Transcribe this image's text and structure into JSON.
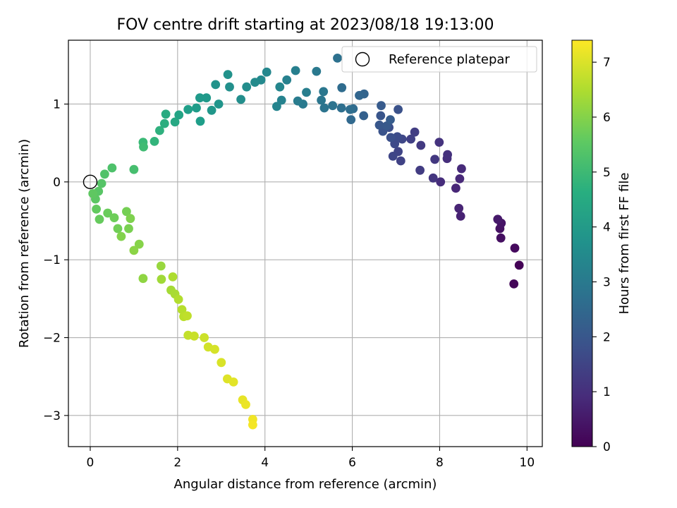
{
  "chart_data": {
    "type": "scatter",
    "title": "FOV centre drift starting at 2023/08/18 19:13:00",
    "xlabel": "Angular distance from reference (arcmin)",
    "ylabel": "Rotation from reference (arcmin)",
    "xlim": [
      -0.5,
      10.35
    ],
    "ylim": [
      -3.4,
      1.82
    ],
    "xticks": [
      0,
      2,
      4,
      6,
      8,
      10
    ],
    "xtick_labels": [
      "0",
      "2",
      "4",
      "6",
      "8",
      "10"
    ],
    "yticks": [
      -3,
      -2,
      -1,
      0,
      1
    ],
    "ytick_labels": [
      "−3",
      "−2",
      "−1",
      "0",
      "1"
    ],
    "grid": true,
    "legend": {
      "position": "top-right",
      "entries": [
        "Reference platepar"
      ]
    },
    "reference_point": {
      "name": "Reference platepar",
      "x": 0,
      "y": 0
    },
    "colorbar": {
      "label": "Hours from first FF file",
      "range": [
        0,
        7.4
      ],
      "ticks": [
        0,
        1,
        2,
        3,
        4,
        5,
        6,
        7
      ],
      "tick_labels": [
        "0",
        "1",
        "2",
        "3",
        "4",
        "5",
        "6",
        "7"
      ],
      "colormap": "viridis"
    },
    "points": [
      [
        9.82,
        -1.07,
        0.05
      ],
      [
        9.7,
        -1.31,
        0.1
      ],
      [
        9.72,
        -0.85,
        0.2
      ],
      [
        9.4,
        -0.72,
        0.3
      ],
      [
        9.38,
        -0.6,
        0.35
      ],
      [
        9.41,
        -0.53,
        0.4
      ],
      [
        9.33,
        -0.48,
        0.5
      ],
      [
        8.48,
        -0.44,
        0.7
      ],
      [
        8.44,
        -0.34,
        0.75
      ],
      [
        8.37,
        -0.08,
        0.8
      ],
      [
        8.46,
        0.04,
        0.85
      ],
      [
        8.5,
        0.17,
        0.9
      ],
      [
        8.02,
        0.0,
        0.95
      ],
      [
        8.17,
        0.3,
        1.0
      ],
      [
        8.18,
        0.35,
        1.05
      ],
      [
        7.99,
        0.51,
        1.1
      ],
      [
        7.85,
        0.05,
        1.15
      ],
      [
        7.89,
        0.29,
        1.2
      ],
      [
        7.57,
        0.47,
        1.25
      ],
      [
        7.55,
        0.15,
        1.3
      ],
      [
        7.43,
        0.64,
        1.35
      ],
      [
        7.34,
        0.55,
        1.4
      ],
      [
        7.11,
        0.27,
        1.45
      ],
      [
        7.05,
        0.39,
        1.5
      ],
      [
        6.93,
        0.33,
        1.55
      ],
      [
        7.14,
        0.55,
        1.6
      ],
      [
        6.97,
        0.49,
        1.65
      ],
      [
        7.03,
        0.58,
        1.7
      ],
      [
        6.84,
        0.7,
        1.75
      ],
      [
        6.88,
        0.57,
        1.8
      ],
      [
        7.05,
        0.93,
        1.85
      ],
      [
        6.7,
        0.65,
        1.9
      ],
      [
        6.65,
        0.85,
        1.95
      ],
      [
        6.62,
        0.73,
        2.0
      ],
      [
        6.79,
        0.72,
        2.05
      ],
      [
        6.66,
        0.98,
        2.1
      ],
      [
        6.87,
        0.8,
        2.15
      ],
      [
        6.26,
        0.85,
        2.25
      ],
      [
        6.27,
        1.13,
        2.35
      ],
      [
        6.16,
        1.11,
        2.4
      ],
      [
        5.97,
        0.8,
        2.5
      ],
      [
        6.02,
        0.94,
        2.55
      ],
      [
        5.76,
        1.21,
        2.6
      ],
      [
        5.95,
        0.93,
        2.65
      ],
      [
        5.75,
        0.95,
        2.7
      ],
      [
        5.66,
        1.59,
        2.75
      ],
      [
        5.55,
        0.98,
        2.8
      ],
      [
        5.36,
        0.95,
        2.85
      ],
      [
        5.29,
        1.05,
        2.9
      ],
      [
        5.34,
        1.16,
        2.95
      ],
      [
        5.18,
        1.42,
        3.0
      ],
      [
        4.87,
        1.0,
        3.05
      ],
      [
        4.75,
        1.04,
        3.1
      ],
      [
        4.95,
        1.15,
        3.15
      ],
      [
        4.7,
        1.43,
        3.2
      ],
      [
        4.5,
        1.31,
        3.25
      ],
      [
        4.38,
        1.05,
        3.3
      ],
      [
        4.27,
        0.97,
        3.35
      ],
      [
        4.34,
        1.22,
        3.4
      ],
      [
        4.04,
        1.41,
        3.45
      ],
      [
        3.91,
        1.31,
        3.5
      ],
      [
        3.77,
        1.28,
        3.55
      ],
      [
        3.58,
        1.22,
        3.6
      ],
      [
        3.45,
        1.06,
        3.65
      ],
      [
        3.19,
        1.22,
        3.7
      ],
      [
        3.15,
        1.38,
        3.75
      ],
      [
        2.87,
        1.25,
        3.8
      ],
      [
        2.94,
        1.0,
        3.85
      ],
      [
        2.78,
        0.92,
        3.9
      ],
      [
        2.66,
        1.08,
        3.95
      ],
      [
        2.51,
        1.08,
        4.0
      ],
      [
        2.43,
        0.95,
        4.05
      ],
      [
        2.52,
        0.78,
        4.1
      ],
      [
        2.24,
        0.93,
        4.15
      ],
      [
        2.03,
        0.86,
        4.3
      ],
      [
        1.94,
        0.77,
        4.4
      ],
      [
        1.73,
        0.87,
        4.5
      ],
      [
        1.7,
        0.75,
        4.6
      ],
      [
        1.59,
        0.66,
        4.7
      ],
      [
        1.47,
        0.52,
        4.85
      ],
      [
        1.21,
        0.51,
        5.0
      ],
      [
        1.22,
        0.45,
        5.1
      ],
      [
        1.0,
        0.16,
        5.2
      ],
      [
        0.5,
        0.18,
        5.3
      ],
      [
        0.33,
        0.1,
        5.35
      ],
      [
        0.26,
        -0.02,
        5.4
      ],
      [
        0.19,
        -0.12,
        5.45
      ],
      [
        0.12,
        -0.22,
        5.5
      ],
      [
        0.06,
        -0.15,
        5.55
      ],
      [
        0.14,
        -0.35,
        5.6
      ],
      [
        0.21,
        -0.48,
        5.65
      ],
      [
        0.4,
        -0.4,
        5.7
      ],
      [
        0.55,
        -0.46,
        5.75
      ],
      [
        0.63,
        -0.6,
        5.8
      ],
      [
        0.83,
        -0.38,
        5.85
      ],
      [
        0.88,
        -0.6,
        5.9
      ],
      [
        0.92,
        -0.47,
        5.95
      ],
      [
        0.71,
        -0.7,
        6.0
      ],
      [
        1.12,
        -0.8,
        6.05
      ],
      [
        1.0,
        -0.88,
        6.1
      ],
      [
        1.21,
        -1.24,
        6.15
      ],
      [
        1.62,
        -1.08,
        6.25
      ],
      [
        1.63,
        -1.25,
        6.35
      ],
      [
        1.85,
        -1.39,
        6.4
      ],
      [
        1.94,
        -1.44,
        6.45
      ],
      [
        1.89,
        -1.22,
        6.5
      ],
      [
        2.02,
        -1.51,
        6.55
      ],
      [
        2.1,
        -1.64,
        6.6
      ],
      [
        2.14,
        -1.73,
        6.65
      ],
      [
        2.22,
        -1.72,
        6.7
      ],
      [
        2.24,
        -1.97,
        6.75
      ],
      [
        2.38,
        -1.98,
        6.8
      ],
      [
        2.61,
        -2.0,
        6.85
      ],
      [
        2.7,
        -2.12,
        6.9
      ],
      [
        2.85,
        -2.15,
        6.95
      ],
      [
        3.0,
        -2.32,
        7.0
      ],
      [
        3.14,
        -2.53,
        7.05
      ],
      [
        3.28,
        -2.57,
        7.1
      ],
      [
        3.49,
        -2.8,
        7.15
      ],
      [
        3.56,
        -2.86,
        7.2
      ],
      [
        3.72,
        -3.05,
        7.25
      ],
      [
        3.72,
        -3.12,
        7.3
      ]
    ]
  }
}
